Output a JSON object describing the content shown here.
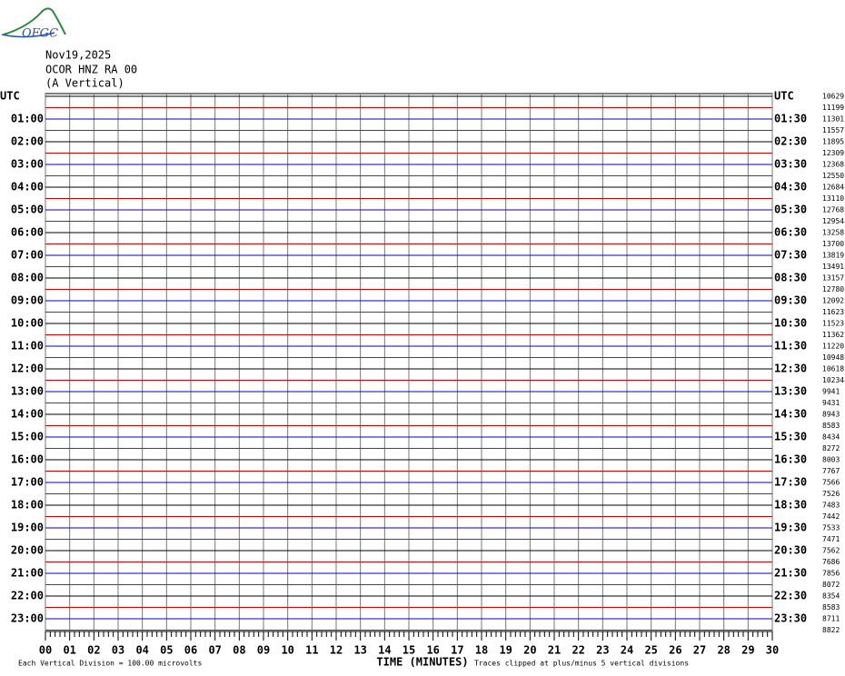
{
  "header": {
    "logo": "OFGC",
    "date": "Nov19,2025",
    "station": "OCOR HNZ RA 00",
    "component": "(A Vertical)"
  },
  "left_labels": [
    "UTC",
    "01:00",
    "02:00",
    "03:00",
    "04:00",
    "05:00",
    "06:00",
    "07:00",
    "08:00",
    "09:00",
    "10:00",
    "11:00",
    "12:00",
    "13:00",
    "14:00",
    "15:00",
    "16:00",
    "17:00",
    "18:00",
    "19:00",
    "20:00",
    "21:00",
    "22:00",
    "23:00"
  ],
  "right_labels": [
    "UTC",
    "01:30",
    "02:30",
    "03:30",
    "04:30",
    "05:30",
    "06:30",
    "07:30",
    "08:30",
    "09:30",
    "10:30",
    "11:30",
    "12:30",
    "13:30",
    "14:30",
    "15:30",
    "16:30",
    "17:30",
    "18:30",
    "19:30",
    "20:30",
    "21:30",
    "22:30",
    "23:30"
  ],
  "trace_counts": [
    10629,
    11199,
    11301,
    11557,
    11895,
    12309,
    12368,
    12550,
    12684,
    13110,
    12768,
    12954,
    13258,
    13700,
    13819,
    13491,
    13157,
    12780,
    12092,
    11623,
    11523,
    11362,
    11220,
    10948,
    10618,
    10234,
    9941,
    9431,
    8943,
    8583,
    8434,
    8272,
    8003,
    7767,
    7566,
    7526,
    7483,
    7442,
    7533,
    7471,
    7562,
    7686,
    7856,
    8072,
    8354,
    8583,
    8711,
    8822
  ],
  "trace_colors": [
    "#000000",
    "#cc0000",
    "#0000cc",
    "#007700"
  ],
  "x_ticks": [
    "00",
    "01",
    "02",
    "03",
    "04",
    "05",
    "06",
    "07",
    "08",
    "09",
    "10",
    "11",
    "12",
    "13",
    "14",
    "15",
    "16",
    "17",
    "18",
    "19",
    "20",
    "21",
    "22",
    "23",
    "24",
    "25",
    "26",
    "27",
    "28",
    "29",
    "30"
  ],
  "footer": {
    "division": "Each Vertical Division =  100.00 microvolts",
    "xlabel": "TIME (MINUTES)",
    "clip": "Traces clipped at plus/minus 5 vertical divisions"
  }
}
